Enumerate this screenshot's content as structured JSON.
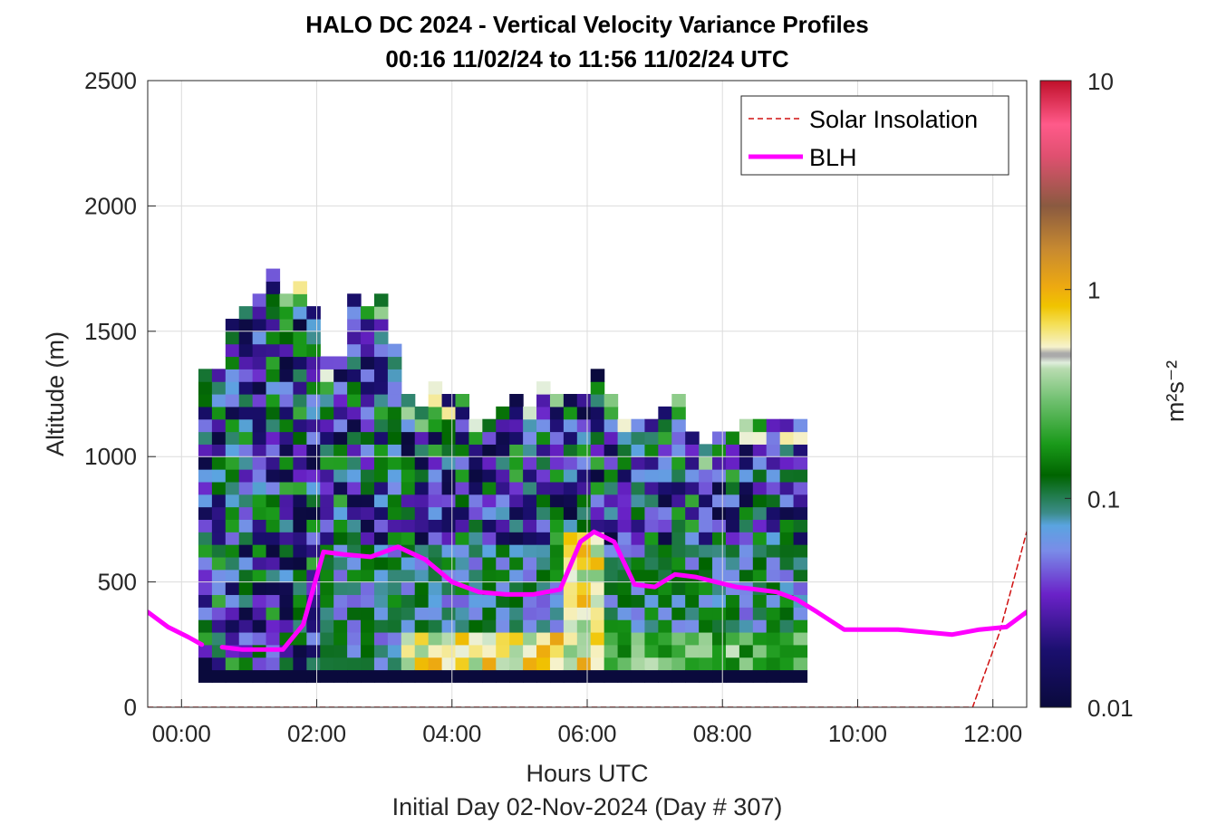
{
  "chart_data": {
    "type": "heatmap",
    "title": "HALO DC 2024 - Vertical Velocity Variance Profiles",
    "subtitle": "00:16 11/02/24 to 11:56 11/02/24  UTC",
    "xlabel": "Hours UTC",
    "xlabel2": "Initial Day 02-Nov-2024 (Day # 307)",
    "ylabel": "Altitude (m)",
    "xlim": [
      -0.5,
      12.5
    ],
    "ylim": [
      0,
      2500
    ],
    "x_ticks": [
      0,
      2,
      4,
      6,
      8,
      10,
      12
    ],
    "x_tick_labels": [
      "00:00",
      "02:00",
      "04:00",
      "06:00",
      "08:00",
      "10:00",
      "12:00"
    ],
    "y_ticks": [
      0,
      500,
      1000,
      1500,
      2000,
      2500
    ],
    "y_tick_labels": [
      "0",
      "500",
      "1000",
      "1500",
      "2000",
      "2500"
    ],
    "grid": true,
    "legend_position": "top-right",
    "colorbar": {
      "label": "m²s⁻²",
      "scale": "log",
      "range": [
        0.01,
        10
      ],
      "tick_labels": [
        "0.01",
        "0.1",
        "1",
        "10"
      ],
      "ticks": [
        0.01,
        0.1,
        1,
        10
      ]
    },
    "heatmap": {
      "time_start": 0.25,
      "time_step": 0.2,
      "alt_start": 100,
      "alt_step": 50,
      "profile_tops": [
        1350,
        1350,
        1550,
        1600,
        1650,
        1750,
        1650,
        1700,
        1600,
        1400,
        1400,
        1650,
        1600,
        1650,
        1450,
        1250,
        1200,
        1300,
        1250,
        1250,
        1150,
        1150,
        1200,
        1250,
        1200,
        1300,
        1250,
        1250,
        1250,
        1350,
        1250,
        1150,
        1150,
        1150,
        1200,
        1250,
        1100,
        1050,
        1100,
        1100,
        1150,
        1150,
        1150,
        1150,
        1150
      ],
      "labeled_values": [
        {
          "time": 5.0,
          "alt": 200,
          "value": 0.9
        },
        {
          "time": 2.0,
          "alt": 1600,
          "value": 0.07
        }
      ]
    },
    "series": [
      {
        "name": "Solar Insolation",
        "style": "dashed",
        "color": "#d01010",
        "x": [
          -0.5,
          11.7,
          11.9,
          12.1,
          12.3,
          12.5
        ],
        "y": [
          0,
          0,
          150,
          300,
          500,
          700
        ]
      },
      {
        "name": "BLH",
        "style": "solid",
        "color": "#ff00ff",
        "x": [
          -0.5,
          -0.2,
          0.1,
          0.3
        ],
        "y": [
          380,
          320,
          280,
          250
        ]
      },
      {
        "name": "BLH",
        "style": "solid",
        "color": "#ff00ff",
        "x": [
          0.6,
          0.9,
          1.2,
          1.5,
          1.8,
          2.1,
          2.4,
          2.8,
          3.2,
          3.6,
          4.0,
          4.4,
          4.8,
          5.2,
          5.6,
          5.9,
          6.1,
          6.4,
          6.7,
          7.0,
          7.3,
          7.6,
          7.9,
          8.2,
          8.5,
          8.8,
          9.1,
          9.4,
          9.8,
          10.2,
          10.6,
          11.0,
          11.4,
          11.8,
          12.2,
          12.5
        ],
        "y": [
          240,
          230,
          230,
          230,
          330,
          620,
          610,
          600,
          640,
          590,
          500,
          460,
          450,
          450,
          470,
          660,
          700,
          660,
          490,
          480,
          530,
          520,
          500,
          480,
          470,
          460,
          430,
          380,
          310,
          310,
          310,
          300,
          290,
          310,
          320,
          380
        ]
      }
    ],
    "legend": [
      {
        "label": "Solar Insolation",
        "style": "dashed",
        "color": "#d01010"
      },
      {
        "label": "BLH",
        "style": "solid",
        "color": "#ff00ff"
      }
    ]
  }
}
